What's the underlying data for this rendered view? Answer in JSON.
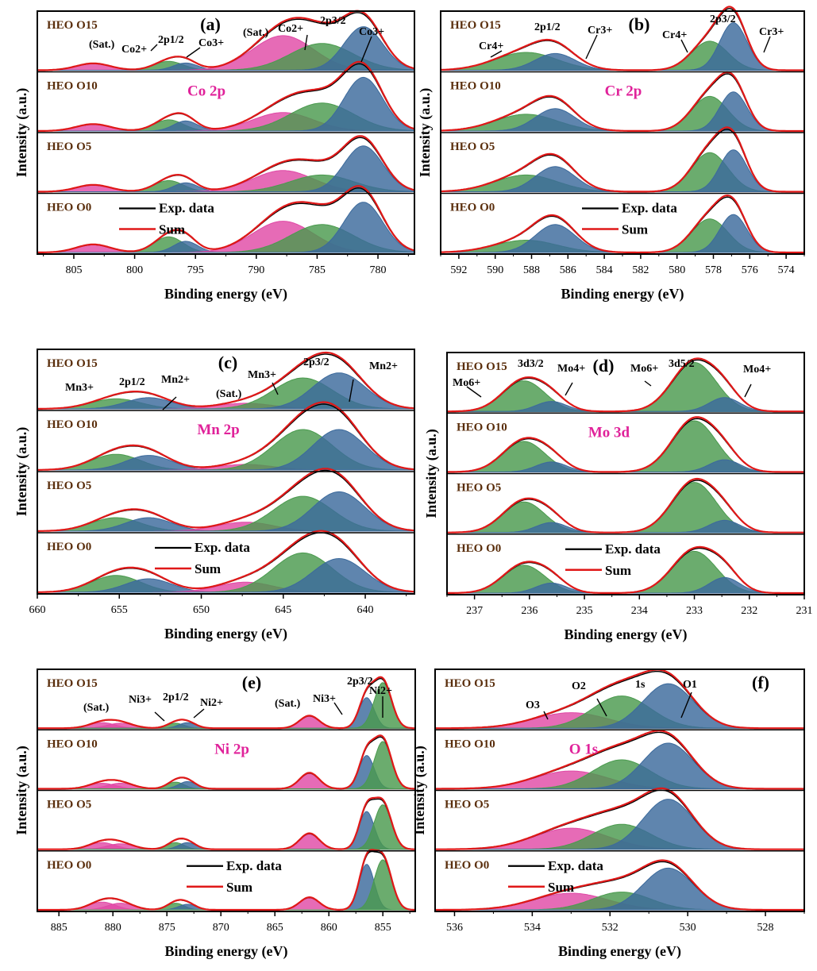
{
  "figure": {
    "colors": {
      "blue": "#3c6a9c",
      "green": "#4a9a4e",
      "pink": "#e04aa6",
      "sum": "#e01818",
      "exp": "#000000",
      "label": "#5a2e0c",
      "title": "#e0229a"
    }
  },
  "chart_data": [
    {
      "type": "area",
      "letter": "(a)",
      "center_title": "Co 2p",
      "xlabel": "Binding energy (eV)",
      "ylabel": "Intensity (a.u.)",
      "xlim": [
        808,
        777
      ],
      "xticks": [
        805,
        800,
        795,
        790,
        785,
        780
      ],
      "samples": [
        "HEO O15",
        "HEO O10",
        "HEO O5",
        "HEO O0"
      ],
      "legend": [
        "Exp. data",
        "Sum"
      ],
      "peaks": [
        {
          "name": "Sat.",
          "x": 803.4,
          "w": 1.4,
          "color": "pink",
          "a": [
            0.12,
            0.12,
            0.12,
            0.14
          ]
        },
        {
          "name": "Co2+ 2p1/2",
          "x": 797.2,
          "w": 1.2,
          "color": "green",
          "a": [
            0.16,
            0.2,
            0.2,
            0.28
          ]
        },
        {
          "name": "Co3+ 2p1/2",
          "x": 795.8,
          "w": 1.0,
          "color": "blue",
          "a": [
            0.13,
            0.18,
            0.16,
            0.2
          ]
        },
        {
          "name": "Sat.",
          "x": 787.8,
          "w": 2.5,
          "color": "pink",
          "a": [
            0.62,
            0.33,
            0.38,
            0.56
          ]
        },
        {
          "name": "Co2+ 2p3/2",
          "x": 784.6,
          "w": 2.6,
          "color": "green",
          "a": [
            0.48,
            0.5,
            0.3,
            0.5
          ]
        },
        {
          "name": "Co3+ 2p3/2",
          "x": 781.2,
          "w": 1.6,
          "color": "blue",
          "a": [
            0.78,
            0.96,
            0.82,
            0.9
          ]
        }
      ],
      "annotations": [
        "(Sat.)",
        "Co2+",
        "2p1/2",
        "Co3+",
        "(Sat.)",
        "Co2+",
        "2p3/2",
        "Co3+"
      ]
    },
    {
      "type": "area",
      "letter": "(b)",
      "center_title": "Cr 2p",
      "xlabel": "Binding energy (eV)",
      "ylabel": "Intensity (a.u.)",
      "xlim": [
        593,
        573
      ],
      "xticks": [
        592,
        590,
        588,
        586,
        584,
        582,
        580,
        578,
        576,
        574
      ],
      "samples": [
        "HEO O15",
        "HEO O10",
        "HEO O5",
        "HEO O0"
      ],
      "legend": [
        "Exp. data",
        "Sum"
      ],
      "peaks": [
        {
          "name": "Cr4+ 2p1/2",
          "x": 588.3,
          "w": 1.7,
          "color": "green",
          "a": [
            0.32,
            0.3,
            0.3,
            0.22
          ]
        },
        {
          "name": "Cr3+ 2p1/2",
          "x": 586.7,
          "w": 1.1,
          "color": "blue",
          "a": [
            0.3,
            0.4,
            0.45,
            0.5
          ]
        },
        {
          "name": "Cr4+ 2p3/2",
          "x": 578.2,
          "w": 1.0,
          "color": "green",
          "a": [
            0.52,
            0.62,
            0.7,
            0.6
          ]
        },
        {
          "name": "Cr3+ 2p3/2",
          "x": 576.9,
          "w": 0.75,
          "color": "blue",
          "a": [
            0.85,
            0.7,
            0.75,
            0.68
          ]
        }
      ],
      "annotations": [
        "Cr4+",
        "2p1/2",
        "Cr3+",
        "Cr4+",
        "2p3/2",
        "Cr3+"
      ]
    },
    {
      "type": "area",
      "letter": "(c)",
      "center_title": "Mn 2p",
      "xlabel": "Binding energy (eV)",
      "ylabel": "Intensity (a.u.)",
      "xlim": [
        660,
        637
      ],
      "xticks": [
        660,
        655,
        650,
        645,
        640
      ],
      "samples": [
        "HEO O15",
        "HEO O10",
        "HEO O5",
        "HEO O0"
      ],
      "legend": [
        "Exp. data",
        "Sum"
      ],
      "peaks": [
        {
          "name": "Mn3+ 2p1/2",
          "x": 655.2,
          "w": 1.5,
          "color": "green",
          "a": [
            0.18,
            0.28,
            0.24,
            0.3
          ]
        },
        {
          "name": "Mn2+ 2p1/2",
          "x": 653.2,
          "w": 1.4,
          "color": "blue",
          "a": [
            0.2,
            0.26,
            0.24,
            0.24
          ]
        },
        {
          "name": "Sat.",
          "x": 647.3,
          "w": 1.7,
          "color": "pink",
          "a": [
            0.1,
            0.1,
            0.16,
            0.18
          ]
        },
        {
          "name": "Mn3+ 2p3/2",
          "x": 643.8,
          "w": 1.8,
          "color": "green",
          "a": [
            0.55,
            0.72,
            0.62,
            0.7
          ]
        },
        {
          "name": "Mn2+ 2p3/2",
          "x": 641.6,
          "w": 1.6,
          "color": "blue",
          "a": [
            0.64,
            0.72,
            0.7,
            0.6
          ]
        }
      ],
      "annotations": [
        "Mn3+",
        "2p1/2",
        "Mn2+",
        "(Sat.)",
        "Mn3+",
        "2p3/2",
        "Mn2+"
      ]
    },
    {
      "type": "area",
      "letter": "(d)",
      "center_title": "Mo 3d",
      "xlabel": "Binding energy (eV)",
      "ylabel": "Intensity (a.u.)",
      "xlim": [
        237.5,
        231
      ],
      "xticks": [
        237,
        236,
        235,
        234,
        233,
        232,
        231
      ],
      "samples": [
        "HEO O15",
        "HEO O10",
        "HEO O5",
        "HEO O0"
      ],
      "legend": [
        "Exp. data",
        "Sum"
      ],
      "peaks": [
        {
          "name": "Mo6+ 3d3/2",
          "x": 236.1,
          "w": 0.38,
          "color": "green",
          "a": [
            0.55,
            0.55,
            0.55,
            0.5
          ]
        },
        {
          "name": "Mo4+ 3d3/2",
          "x": 235.6,
          "w": 0.28,
          "color": "blue",
          "a": [
            0.18,
            0.18,
            0.18,
            0.18
          ]
        },
        {
          "name": "Mo6+ 3d5/2",
          "x": 233.0,
          "w": 0.4,
          "color": "green",
          "a": [
            0.88,
            0.92,
            0.9,
            0.75
          ]
        },
        {
          "name": "Mo4+ 3d5/2",
          "x": 232.45,
          "w": 0.28,
          "color": "blue",
          "a": [
            0.25,
            0.22,
            0.22,
            0.28
          ]
        }
      ],
      "annotations": [
        "Mo6+",
        "3d3/2",
        "Mo4+",
        "Mo6+",
        "3d5/2",
        "Mo4+"
      ]
    },
    {
      "type": "area",
      "letter": "(e)",
      "center_title": "Ni 2p",
      "xlabel": "Binding energy (eV)",
      "ylabel": "Intensity (a.u.)",
      "xlim": [
        887,
        852
      ],
      "xticks": [
        885,
        880,
        875,
        870,
        865,
        860,
        855
      ],
      "samples": [
        "HEO O15",
        "HEO O10",
        "HEO O5",
        "HEO O0"
      ],
      "legend": [
        "Exp. data",
        "Sum"
      ],
      "peaks": [
        {
          "name": "Sat.",
          "x": 881.0,
          "w": 1.2,
          "color": "pink",
          "a": [
            0.1,
            0.1,
            0.12,
            0.14
          ]
        },
        {
          "name": "Sat.",
          "x": 879.3,
          "w": 1.2,
          "color": "pink",
          "a": [
            0.09,
            0.1,
            0.1,
            0.12
          ]
        },
        {
          "name": "Ni3+ 2p1/2",
          "x": 874.2,
          "w": 0.8,
          "color": "green",
          "a": [
            0.09,
            0.12,
            0.12,
            0.12
          ]
        },
        {
          "name": "Ni2+ 2p1/2",
          "x": 873.1,
          "w": 0.8,
          "color": "blue",
          "a": [
            0.1,
            0.13,
            0.12,
            0.1
          ]
        },
        {
          "name": "Sat.",
          "x": 861.8,
          "w": 0.9,
          "color": "pink",
          "a": [
            0.22,
            0.28,
            0.28,
            0.22
          ]
        },
        {
          "name": "Ni3+ 2p3/2",
          "x": 856.5,
          "w": 0.7,
          "color": "blue",
          "a": [
            0.55,
            0.6,
            0.68,
            0.82
          ]
        },
        {
          "name": "Ni2+ 2p3/2",
          "x": 855.0,
          "w": 0.8,
          "color": "green",
          "a": [
            0.82,
            0.85,
            0.8,
            0.9
          ]
        }
      ],
      "annotations": [
        "(Sat.)",
        "Ni3+",
        "2p1/2",
        "Ni2+",
        "(Sat.)",
        "Ni3+",
        "2p3/2",
        "Ni2+"
      ]
    },
    {
      "type": "area",
      "letter": "(f)",
      "center_title": "O 1s",
      "xlabel": "Binding energy (eV)",
      "ylabel": "Intensity (a.u.)",
      "xlim": [
        536.5,
        527
      ],
      "xticks": [
        536,
        534,
        532,
        530,
        528
      ],
      "samples": [
        "HEO O15",
        "HEO O10",
        "HEO O5",
        "HEO O0"
      ],
      "legend": [
        "Exp. data",
        "Sum"
      ],
      "peaks": [
        {
          "name": "O3",
          "x": 533.0,
          "w": 0.95,
          "color": "pink",
          "a": [
            0.28,
            0.32,
            0.38,
            0.3
          ]
        },
        {
          "name": "O2",
          "x": 531.7,
          "w": 0.75,
          "color": "green",
          "a": [
            0.58,
            0.52,
            0.45,
            0.32
          ]
        },
        {
          "name": "O1",
          "x": 530.5,
          "w": 0.65,
          "color": "blue",
          "a": [
            0.8,
            0.82,
            0.9,
            0.75
          ]
        }
      ],
      "annotations": [
        "O3",
        "O2",
        "1s",
        "O1"
      ]
    }
  ]
}
